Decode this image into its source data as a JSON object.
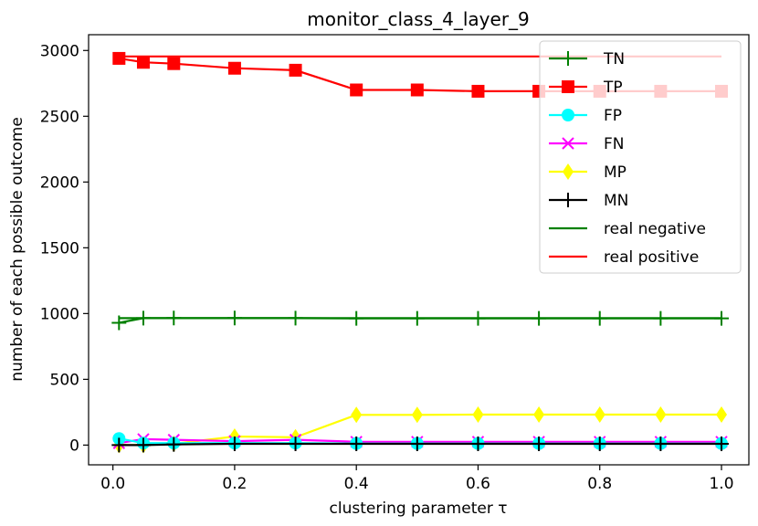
{
  "chart_data": {
    "type": "line",
    "title": "monitor_class_4_layer_9",
    "xlabel": "clustering parameter τ",
    "ylabel": "number of each possible outcome",
    "xlim": [
      -0.04,
      1.045
    ],
    "ylim": [
      -150,
      3120
    ],
    "xticks": [
      0.0,
      0.2,
      0.4,
      0.6,
      0.8,
      1.0
    ],
    "xtick_labels": [
      "0.0",
      "0.2",
      "0.4",
      "0.6",
      "0.8",
      "1.0"
    ],
    "yticks": [
      0,
      500,
      1000,
      1500,
      2000,
      2500,
      3000
    ],
    "ytick_labels": [
      "0",
      "500",
      "1000",
      "1500",
      "2000",
      "2500",
      "3000"
    ],
    "grid": false,
    "legend_position": "top-right",
    "x": [
      0.01,
      0.05,
      0.1,
      0.2,
      0.3,
      0.4,
      0.5,
      0.6,
      0.7,
      0.8,
      0.9,
      1.0
    ],
    "series": [
      {
        "name": "TN",
        "color": "#008000",
        "marker": "plus",
        "values": [
          930,
          965,
          966,
          966,
          965,
          963,
          963,
          963,
          963,
          963,
          963,
          963
        ]
      },
      {
        "name": "TP",
        "color": "#ff0000",
        "marker": "square",
        "values": [
          2940,
          2910,
          2900,
          2865,
          2850,
          2700,
          2700,
          2690,
          2690,
          2690,
          2690,
          2690
        ]
      },
      {
        "name": "FP",
        "color": "#00ffff",
        "marker": "circle",
        "values": [
          50,
          15,
          15,
          15,
          15,
          12,
          12,
          12,
          12,
          12,
          12,
          12
        ]
      },
      {
        "name": "FN",
        "color": "#ff00ff",
        "marker": "x",
        "values": [
          15,
          45,
          40,
          30,
          40,
          25,
          25,
          25,
          25,
          25,
          25,
          25
        ]
      },
      {
        "name": "MP",
        "color": "#ffff00",
        "marker": "diamond",
        "values": [
          0,
          0,
          10,
          65,
          60,
          230,
          230,
          232,
          232,
          232,
          232,
          232
        ]
      },
      {
        "name": "MN",
        "color": "#000000",
        "marker": "plus",
        "values": [
          0,
          0,
          5,
          10,
          10,
          10,
          10,
          10,
          10,
          10,
          10,
          10
        ]
      },
      {
        "name": "real negative",
        "color": "#008000",
        "marker": "none",
        "values": [
          965,
          965,
          965,
          965,
          965,
          965,
          965,
          965,
          965,
          965,
          965,
          965
        ]
      },
      {
        "name": "real positive",
        "color": "#ff0000",
        "marker": "none",
        "values": [
          2955,
          2955,
          2955,
          2955,
          2955,
          2955,
          2955,
          2955,
          2955,
          2955,
          2955,
          2955
        ]
      }
    ]
  }
}
